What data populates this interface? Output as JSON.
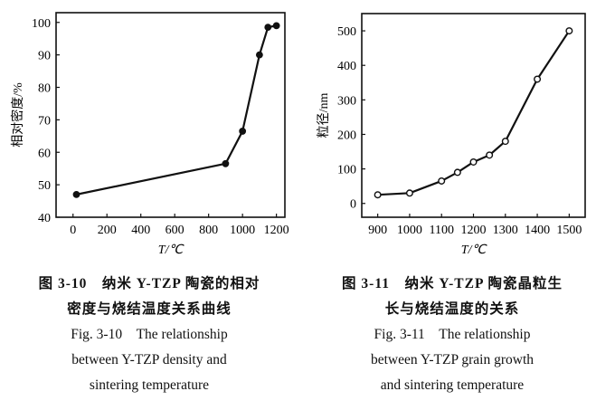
{
  "chart_data": [
    {
      "type": "line",
      "xlabel": "T/℃",
      "ylabel": "相对密度/%",
      "xlim": [
        -100,
        1250
      ],
      "ylim": [
        40,
        103
      ],
      "xticks": [
        0,
        200,
        400,
        600,
        800,
        1000,
        1200
      ],
      "yticks": [
        40,
        50,
        60,
        70,
        80,
        90,
        100
      ],
      "marker": "filled-circle",
      "grid": false,
      "x": [
        20,
        900,
        1000,
        1100,
        1150,
        1200
      ],
      "y": [
        47,
        56.5,
        66.5,
        90,
        98.5,
        99
      ]
    },
    {
      "type": "line",
      "xlabel": "T/℃",
      "ylabel": "粒径/nm",
      "xlim": [
        850,
        1550
      ],
      "ylim": [
        -40,
        550
      ],
      "xticks": [
        900,
        1000,
        1100,
        1200,
        1300,
        1400,
        1500
      ],
      "yticks": [
        0,
        100,
        200,
        300,
        400,
        500
      ],
      "marker": "open-circle",
      "grid": false,
      "x": [
        900,
        1000,
        1100,
        1150,
        1200,
        1250,
        1300,
        1400,
        1500
      ],
      "y": [
        25,
        30,
        65,
        90,
        120,
        140,
        180,
        360,
        500
      ]
    }
  ],
  "captions": [
    {
      "zh1": "图 3-10　纳米 Y-TZP 陶瓷的相对",
      "zh2": "密度与烧结温度关系曲线",
      "en1": "Fig. 3-10　The relationship",
      "en2": "between Y-TZP density and",
      "en3": "sintering temperature"
    },
    {
      "zh1": "图 3-11　纳米 Y-TZP 陶瓷晶粒生",
      "zh2": "长与烧结温度的关系",
      "en1": "Fig. 3-11　The relationship",
      "en2": "between Y-TZP grain growth",
      "en3": "and sintering temperature"
    }
  ]
}
